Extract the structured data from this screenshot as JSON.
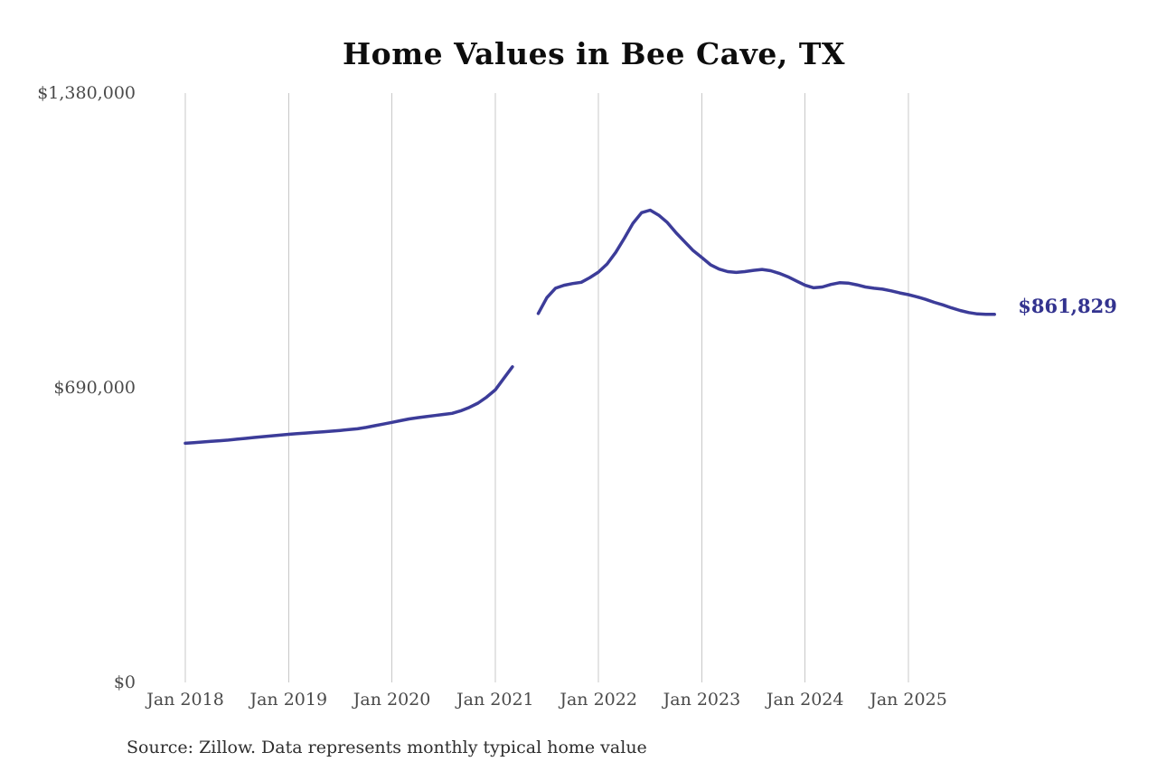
{
  "chart_data": {
    "type": "line",
    "title": "Home Values in Bee Cave, TX",
    "source_note": "Source: Zillow. Data represents monthly typical home value",
    "series_name": "Monthly typical home value",
    "end_label": "$861,829",
    "latest_value": 861829,
    "grid": "vertical-only",
    "legend": "none",
    "ylim": [
      0,
      1380000
    ],
    "yticks": [
      {
        "value": 0,
        "label": "$0"
      },
      {
        "value": 690000,
        "label": "$690,000"
      },
      {
        "value": 1380000,
        "label": "$1,380,000"
      }
    ],
    "xticks": [
      {
        "month_index": 0,
        "label": "Jan 2018"
      },
      {
        "month_index": 12,
        "label": "Jan 2019"
      },
      {
        "month_index": 24,
        "label": "Jan 2020"
      },
      {
        "month_index": 36,
        "label": "Jan 2021"
      },
      {
        "month_index": 48,
        "label": "Jan 2022"
      },
      {
        "month_index": 60,
        "label": "Jan 2023"
      },
      {
        "month_index": 72,
        "label": "Jan 2024"
      },
      {
        "month_index": 84,
        "label": "Jan 2025"
      }
    ],
    "months": [
      "Jan 2018",
      "Feb 2018",
      "Mar 2018",
      "Apr 2018",
      "May 2018",
      "Jun 2018",
      "Jul 2018",
      "Aug 2018",
      "Sep 2018",
      "Oct 2018",
      "Nov 2018",
      "Dec 2018",
      "Jan 2019",
      "Feb 2019",
      "Mar 2019",
      "Apr 2019",
      "May 2019",
      "Jun 2019",
      "Jul 2019",
      "Aug 2019",
      "Sep 2019",
      "Oct 2019",
      "Nov 2019",
      "Dec 2019",
      "Jan 2020",
      "Feb 2020",
      "Mar 2020",
      "Apr 2020",
      "May 2020",
      "Jun 2020",
      "Jul 2020",
      "Aug 2020",
      "Sep 2020",
      "Oct 2020",
      "Nov 2020",
      "Dec 2020",
      "Jan 2021",
      "Feb 2021",
      "Mar 2021",
      "Apr 2021",
      "May 2021",
      "Jun 2021",
      "Jul 2021",
      "Aug 2021",
      "Sep 2021",
      "Oct 2021",
      "Nov 2021",
      "Dec 2021",
      "Jan 2022",
      "Feb 2022",
      "Mar 2022",
      "Apr 2022",
      "May 2022",
      "Jun 2022",
      "Jul 2022",
      "Aug 2022",
      "Sep 2022",
      "Oct 2022",
      "Nov 2022",
      "Dec 2022",
      "Jan 2023",
      "Feb 2023",
      "Mar 2023",
      "Apr 2023",
      "May 2023",
      "Jun 2023",
      "Jul 2023",
      "Aug 2023",
      "Sep 2023",
      "Oct 2023",
      "Nov 2023",
      "Dec 2023",
      "Jan 2024",
      "Feb 2024",
      "Mar 2024",
      "Apr 2024",
      "May 2024",
      "Jun 2024",
      "Jul 2024",
      "Aug 2024",
      "Sep 2024",
      "Oct 2024",
      "Nov 2024",
      "Dec 2024",
      "Jan 2025",
      "Feb 2025",
      "Mar 2025",
      "Apr 2025",
      "May 2025",
      "Jun 2025",
      "Jul 2025",
      "Aug 2025",
      "Sep 2025",
      "Oct 2025",
      "Nov 2025"
    ],
    "values": [
      560000,
      561500,
      563000,
      564500,
      566000,
      567500,
      569500,
      571500,
      573500,
      575500,
      577500,
      579000,
      581000,
      582500,
      584000,
      585500,
      587000,
      588500,
      590000,
      592000,
      594000,
      597000,
      601000,
      605000,
      609000,
      613000,
      617000,
      620000,
      622500,
      625000,
      627500,
      630000,
      636000,
      644000,
      654000,
      668000,
      685000,
      712000,
      739000,
      null,
      null,
      864000,
      901000,
      923000,
      930000,
      934000,
      937000,
      948000,
      961000,
      980000,
      1007000,
      1040000,
      1075000,
      1100000,
      1106000,
      1094000,
      1077000,
      1053000,
      1032000,
      1011000,
      995000,
      978000,
      968000,
      962000,
      960000,
      962000,
      965000,
      967000,
      964000,
      958000,
      950000,
      940000,
      930000,
      924000,
      926000,
      932000,
      936000,
      935000,
      931000,
      926000,
      923000,
      921000,
      917000,
      912000,
      908000,
      903000,
      897000,
      890000,
      884000,
      877000,
      871000,
      866000,
      863000,
      862000,
      861829
    ],
    "colors": {
      "line": "#3c3c99",
      "end_label": "#33338f",
      "gridline": "#c8c8c8",
      "tick_label": "#4a4a4a",
      "title": "#0d0d0d",
      "source": "#2e2e2e",
      "background": "#ffffff"
    }
  }
}
